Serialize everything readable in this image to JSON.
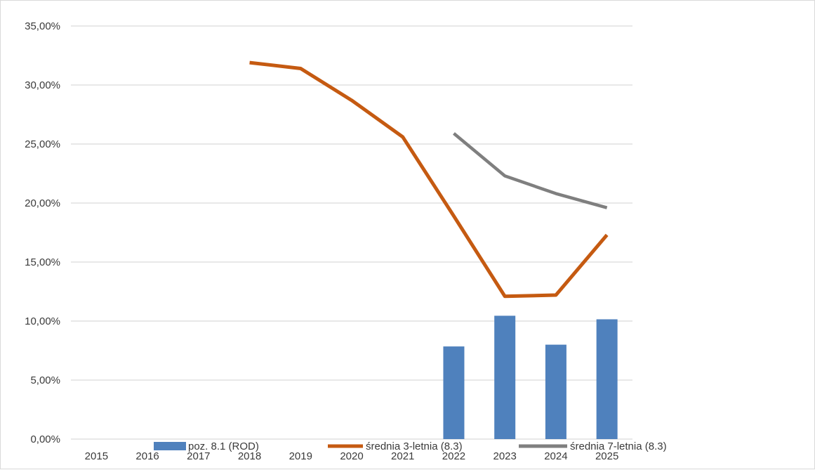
{
  "chart_data": {
    "type": "bar",
    "categories": [
      "2015",
      "2016",
      "2017",
      "2018",
      "2019",
      "2020",
      "2021",
      "2022",
      "2023",
      "2024",
      "2025"
    ],
    "series": [
      {
        "name": "poz. 8.1 (ROD)",
        "type": "bar",
        "color": "#4f81bd",
        "values": [
          null,
          null,
          null,
          null,
          null,
          null,
          null,
          7.85,
          10.45,
          8.0,
          10.15
        ]
      },
      {
        "name": "średnia 3-letnia (8.3)",
        "type": "line",
        "color": "#c55a11",
        "values": [
          null,
          null,
          null,
          31.9,
          31.4,
          28.7,
          25.6,
          18.9,
          12.1,
          12.2,
          17.3
        ]
      },
      {
        "name": "średnia 7-letnia (8.3)",
        "type": "line",
        "color": "#7f7f7f",
        "values": [
          null,
          null,
          null,
          null,
          null,
          null,
          null,
          25.9,
          22.3,
          20.8,
          19.6
        ]
      }
    ],
    "ylim": [
      0,
      35
    ],
    "yticks": [
      0,
      5,
      10,
      15,
      20,
      25,
      30,
      35
    ],
    "ytick_labels": [
      "0,00%",
      "5,00%",
      "10,00%",
      "15,00%",
      "20,00%",
      "25,00%",
      "30,00%",
      "35,00%"
    ],
    "grid": true,
    "legend_position": "bottom"
  }
}
